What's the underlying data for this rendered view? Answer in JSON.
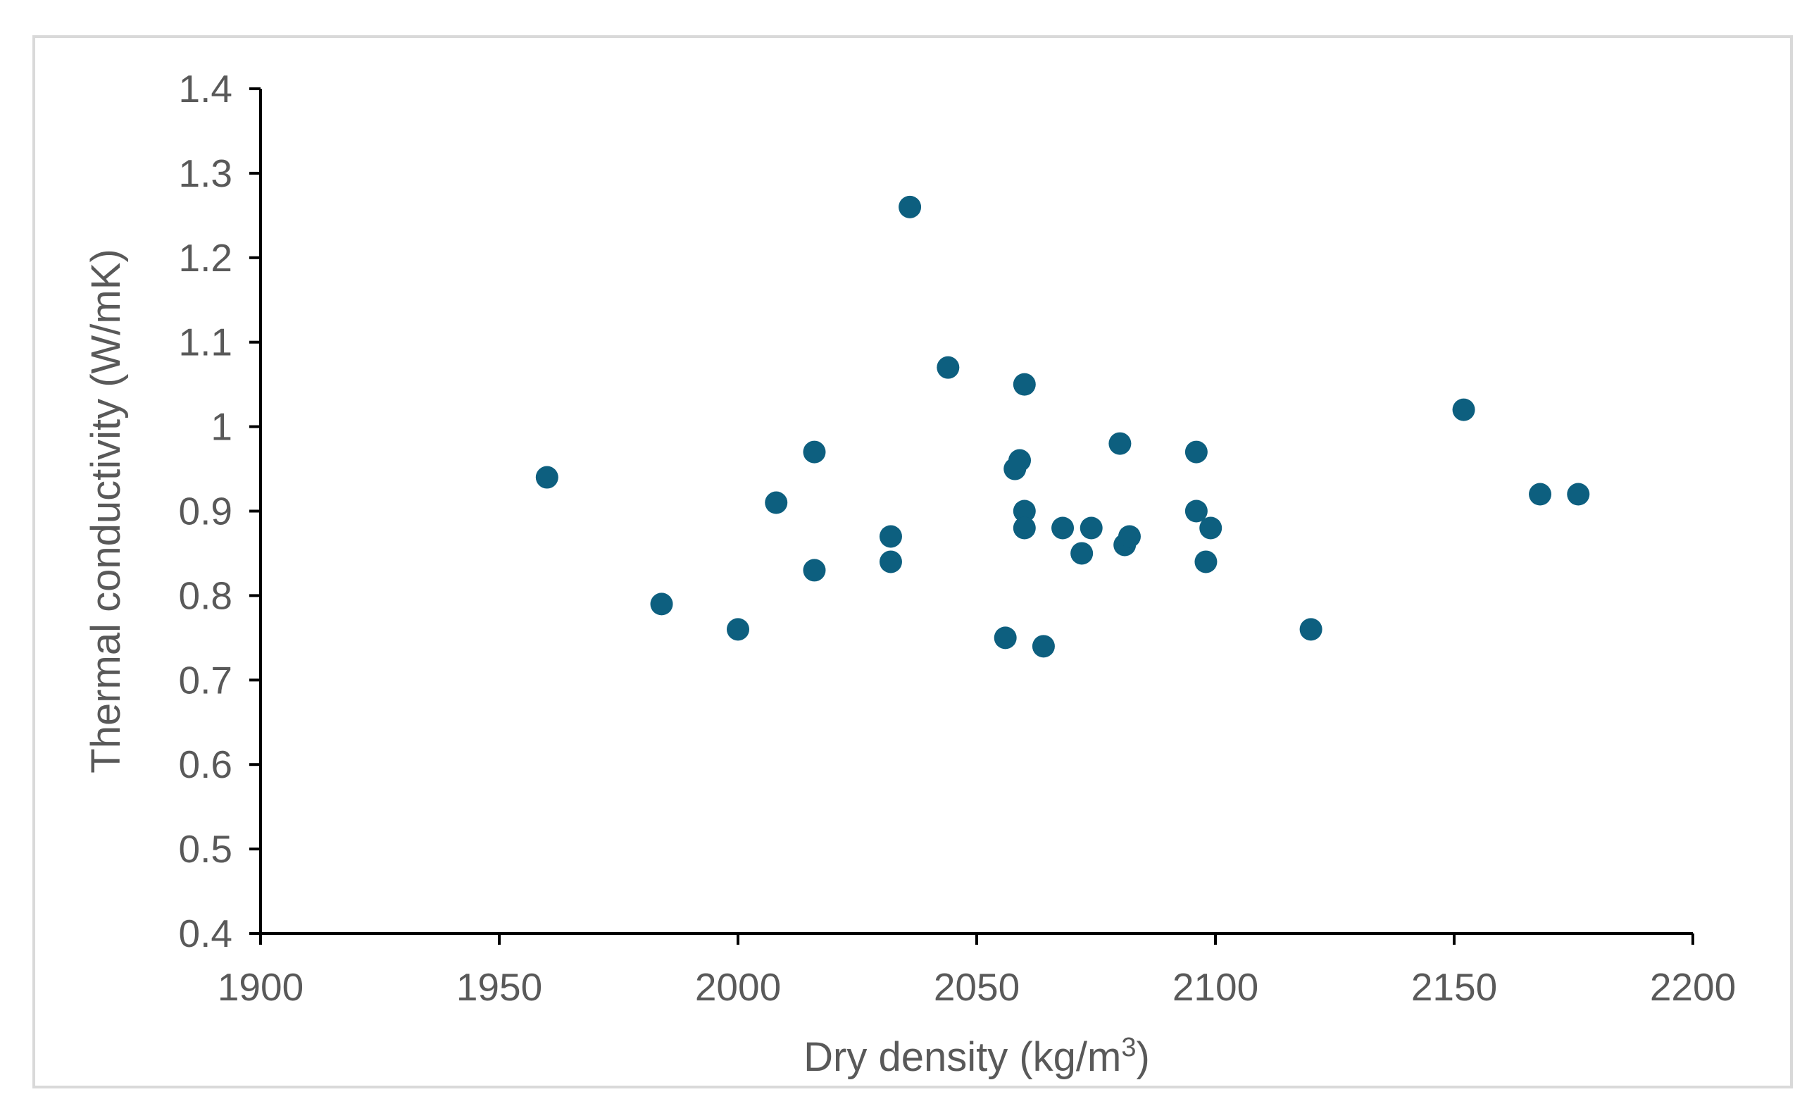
{
  "chart_data": {
    "type": "scatter",
    "xlabel": "Dry density (kg/m",
    "xlabel_sup": "3",
    "xlabel_end": ")",
    "ylabel": "Thermal conductivity (W/mK)",
    "xlim": [
      1900,
      2200
    ],
    "ylim": [
      0.4,
      1.4
    ],
    "xticks": [
      1900,
      1950,
      2000,
      2050,
      2100,
      2150,
      2200
    ],
    "xtick_labels": [
      "1900",
      "1950",
      "2000",
      "2050",
      "2100",
      "2150",
      "2200"
    ],
    "yticks": [
      0.4,
      0.5,
      0.6,
      0.7,
      0.8,
      0.9,
      1.0,
      1.1,
      1.2,
      1.3,
      1.4
    ],
    "ytick_labels": [
      "0.4",
      "0.5",
      "0.6",
      "0.7",
      "0.8",
      "0.9",
      "1",
      "1.1",
      "1.2",
      "1.3",
      "1.4"
    ],
    "grid": false,
    "legend": "none",
    "marker_color": "#0d5f7f",
    "points": [
      {
        "x": 1960,
        "y": 0.94
      },
      {
        "x": 1984,
        "y": 0.79
      },
      {
        "x": 2000,
        "y": 0.76
      },
      {
        "x": 2008,
        "y": 0.91
      },
      {
        "x": 2016,
        "y": 0.97
      },
      {
        "x": 2016,
        "y": 0.83
      },
      {
        "x": 2032,
        "y": 0.87
      },
      {
        "x": 2032,
        "y": 0.84
      },
      {
        "x": 2036,
        "y": 1.26
      },
      {
        "x": 2044,
        "y": 1.07
      },
      {
        "x": 2056,
        "y": 0.75
      },
      {
        "x": 2058,
        "y": 0.95
      },
      {
        "x": 2059,
        "y": 0.96
      },
      {
        "x": 2060,
        "y": 1.05
      },
      {
        "x": 2060,
        "y": 0.9
      },
      {
        "x": 2060,
        "y": 0.88
      },
      {
        "x": 2064,
        "y": 0.74
      },
      {
        "x": 2068,
        "y": 0.88
      },
      {
        "x": 2072,
        "y": 0.85
      },
      {
        "x": 2074,
        "y": 0.88
      },
      {
        "x": 2080,
        "y": 0.98
      },
      {
        "x": 2081,
        "y": 0.86
      },
      {
        "x": 2082,
        "y": 0.87
      },
      {
        "x": 2096,
        "y": 0.97
      },
      {
        "x": 2096,
        "y": 0.9
      },
      {
        "x": 2098,
        "y": 0.84
      },
      {
        "x": 2099,
        "y": 0.88
      },
      {
        "x": 2120,
        "y": 0.76
      },
      {
        "x": 2152,
        "y": 1.02
      },
      {
        "x": 2168,
        "y": 0.92
      },
      {
        "x": 2176,
        "y": 0.92
      }
    ]
  }
}
